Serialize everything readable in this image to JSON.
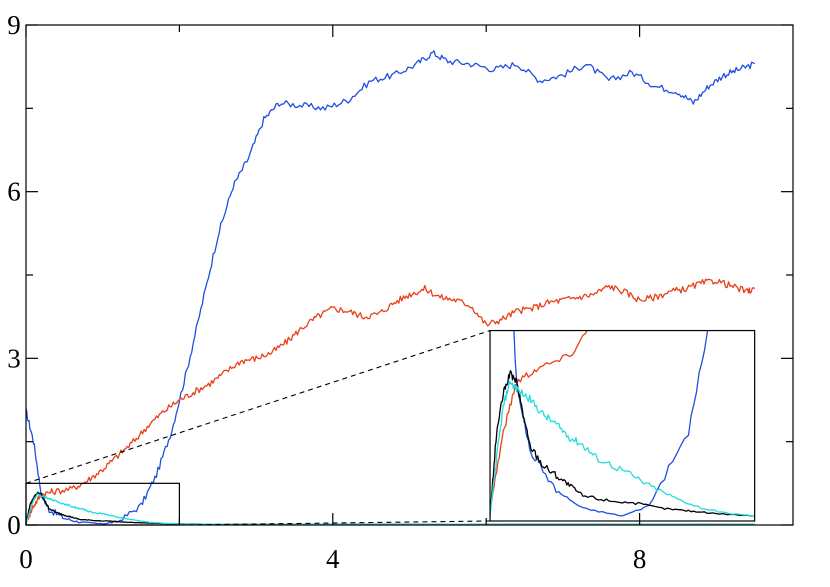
{
  "chart_data": {
    "type": "line",
    "title": "",
    "xlabel": "",
    "ylabel": "",
    "xlim": [
      0,
      10
    ],
    "ylim": [
      0,
      9
    ],
    "xticks": [
      0,
      4,
      8
    ],
    "yticks": [
      0,
      3,
      6,
      9
    ],
    "x_tick_labels": [
      "0",
      "4",
      "8"
    ],
    "y_tick_labels": [
      "0",
      "3",
      "6",
      "9"
    ],
    "minor_xticks": [
      2,
      6
    ],
    "minor_yticks": [
      1.5,
      4.5,
      7.5
    ],
    "grid": false,
    "legend": "none",
    "series": [
      {
        "color": "#1f4fe0",
        "points": [
          [
            0,
            2.05
          ],
          [
            0.1,
            1.5
          ],
          [
            0.2,
            0.55
          ],
          [
            0.3,
            0.28
          ],
          [
            0.5,
            0.12
          ],
          [
            0.7,
            0.05
          ],
          [
            1.0,
            0.02
          ],
          [
            1.2,
            0.06
          ],
          [
            1.5,
            0.35
          ],
          [
            1.7,
            0.9
          ],
          [
            1.9,
            1.7
          ],
          [
            2.1,
            2.8
          ],
          [
            2.3,
            4.0
          ],
          [
            2.5,
            5.2
          ],
          [
            2.7,
            6.1
          ],
          [
            2.9,
            6.6
          ],
          [
            3.1,
            7.3
          ],
          [
            3.3,
            7.6
          ],
          [
            3.6,
            7.55
          ],
          [
            3.9,
            7.5
          ],
          [
            4.2,
            7.65
          ],
          [
            4.5,
            8.0
          ],
          [
            4.8,
            8.1
          ],
          [
            5.1,
            8.3
          ],
          [
            5.3,
            8.5
          ],
          [
            5.5,
            8.35
          ],
          [
            5.8,
            8.3
          ],
          [
            6.1,
            8.2
          ],
          [
            6.4,
            8.3
          ],
          [
            6.7,
            8.0
          ],
          [
            7.0,
            8.1
          ],
          [
            7.3,
            8.3
          ],
          [
            7.6,
            8.0
          ],
          [
            7.9,
            8.15
          ],
          [
            8.2,
            7.9
          ],
          [
            8.5,
            7.8
          ],
          [
            8.7,
            7.6
          ],
          [
            8.9,
            7.9
          ],
          [
            9.1,
            8.1
          ],
          [
            9.3,
            8.2
          ],
          [
            9.5,
            8.3
          ]
        ]
      },
      {
        "color": "#e8401a",
        "points": [
          [
            0,
            0.05
          ],
          [
            0.1,
            0.35
          ],
          [
            0.2,
            0.55
          ],
          [
            0.35,
            0.6
          ],
          [
            0.6,
            0.65
          ],
          [
            0.8,
            0.8
          ],
          [
            1.0,
            1.0
          ],
          [
            1.2,
            1.25
          ],
          [
            1.4,
            1.5
          ],
          [
            1.6,
            1.8
          ],
          [
            1.8,
            2.05
          ],
          [
            2.0,
            2.25
          ],
          [
            2.2,
            2.4
          ],
          [
            2.4,
            2.55
          ],
          [
            2.6,
            2.75
          ],
          [
            2.8,
            2.95
          ],
          [
            3.0,
            3.0
          ],
          [
            3.2,
            3.1
          ],
          [
            3.4,
            3.3
          ],
          [
            3.6,
            3.55
          ],
          [
            3.8,
            3.75
          ],
          [
            4.0,
            3.9
          ],
          [
            4.2,
            3.85
          ],
          [
            4.4,
            3.75
          ],
          [
            4.6,
            3.8
          ],
          [
            4.8,
            4.0
          ],
          [
            5.0,
            4.15
          ],
          [
            5.2,
            4.25
          ],
          [
            5.4,
            4.1
          ],
          [
            5.6,
            4.05
          ],
          [
            5.8,
            3.95
          ],
          [
            6.0,
            3.6
          ],
          [
            6.2,
            3.7
          ],
          [
            6.4,
            3.85
          ],
          [
            6.6,
            3.9
          ],
          [
            6.8,
            4.0
          ],
          [
            7.0,
            4.05
          ],
          [
            7.2,
            4.1
          ],
          [
            7.4,
            4.15
          ],
          [
            7.6,
            4.3
          ],
          [
            7.8,
            4.2
          ],
          [
            8.0,
            4.05
          ],
          [
            8.2,
            4.1
          ],
          [
            8.4,
            4.2
          ],
          [
            8.6,
            4.25
          ],
          [
            8.8,
            4.35
          ],
          [
            9.0,
            4.4
          ],
          [
            9.2,
            4.3
          ],
          [
            9.4,
            4.2
          ],
          [
            9.5,
            4.25
          ]
        ]
      },
      {
        "color": "#000000",
        "points": [
          [
            0,
            0.02
          ],
          [
            0.05,
            0.35
          ],
          [
            0.1,
            0.5
          ],
          [
            0.15,
            0.58
          ],
          [
            0.2,
            0.55
          ],
          [
            0.25,
            0.42
          ],
          [
            0.3,
            0.3
          ],
          [
            0.4,
            0.22
          ],
          [
            0.5,
            0.18
          ],
          [
            0.6,
            0.14
          ],
          [
            0.7,
            0.1
          ],
          [
            0.9,
            0.08
          ],
          [
            1.1,
            0.07
          ],
          [
            1.3,
            0.05
          ],
          [
            1.5,
            0.04
          ],
          [
            1.7,
            0.03
          ],
          [
            2.0,
            0.02
          ],
          [
            3.0,
            0.01
          ],
          [
            9.5,
            0.01
          ]
        ]
      },
      {
        "color": "#22dddd",
        "points": [
          [
            0,
            0.02
          ],
          [
            0.05,
            0.25
          ],
          [
            0.1,
            0.45
          ],
          [
            0.15,
            0.55
          ],
          [
            0.2,
            0.52
          ],
          [
            0.3,
            0.48
          ],
          [
            0.4,
            0.42
          ],
          [
            0.5,
            0.38
          ],
          [
            0.6,
            0.33
          ],
          [
            0.7,
            0.3
          ],
          [
            0.8,
            0.25
          ],
          [
            1.0,
            0.2
          ],
          [
            1.2,
            0.14
          ],
          [
            1.4,
            0.09
          ],
          [
            1.6,
            0.05
          ],
          [
            1.8,
            0.03
          ],
          [
            2.0,
            0.02
          ],
          [
            3.0,
            0.01
          ],
          [
            9.5,
            0.01
          ]
        ]
      }
    ],
    "inset": {
      "source_window": {
        "x": [
          0,
          2
        ],
        "y": [
          0,
          0.75
        ]
      },
      "frame_window": {
        "x": [
          6.05,
          9.5
        ],
        "y": [
          0,
          3.5
        ]
      }
    }
  }
}
